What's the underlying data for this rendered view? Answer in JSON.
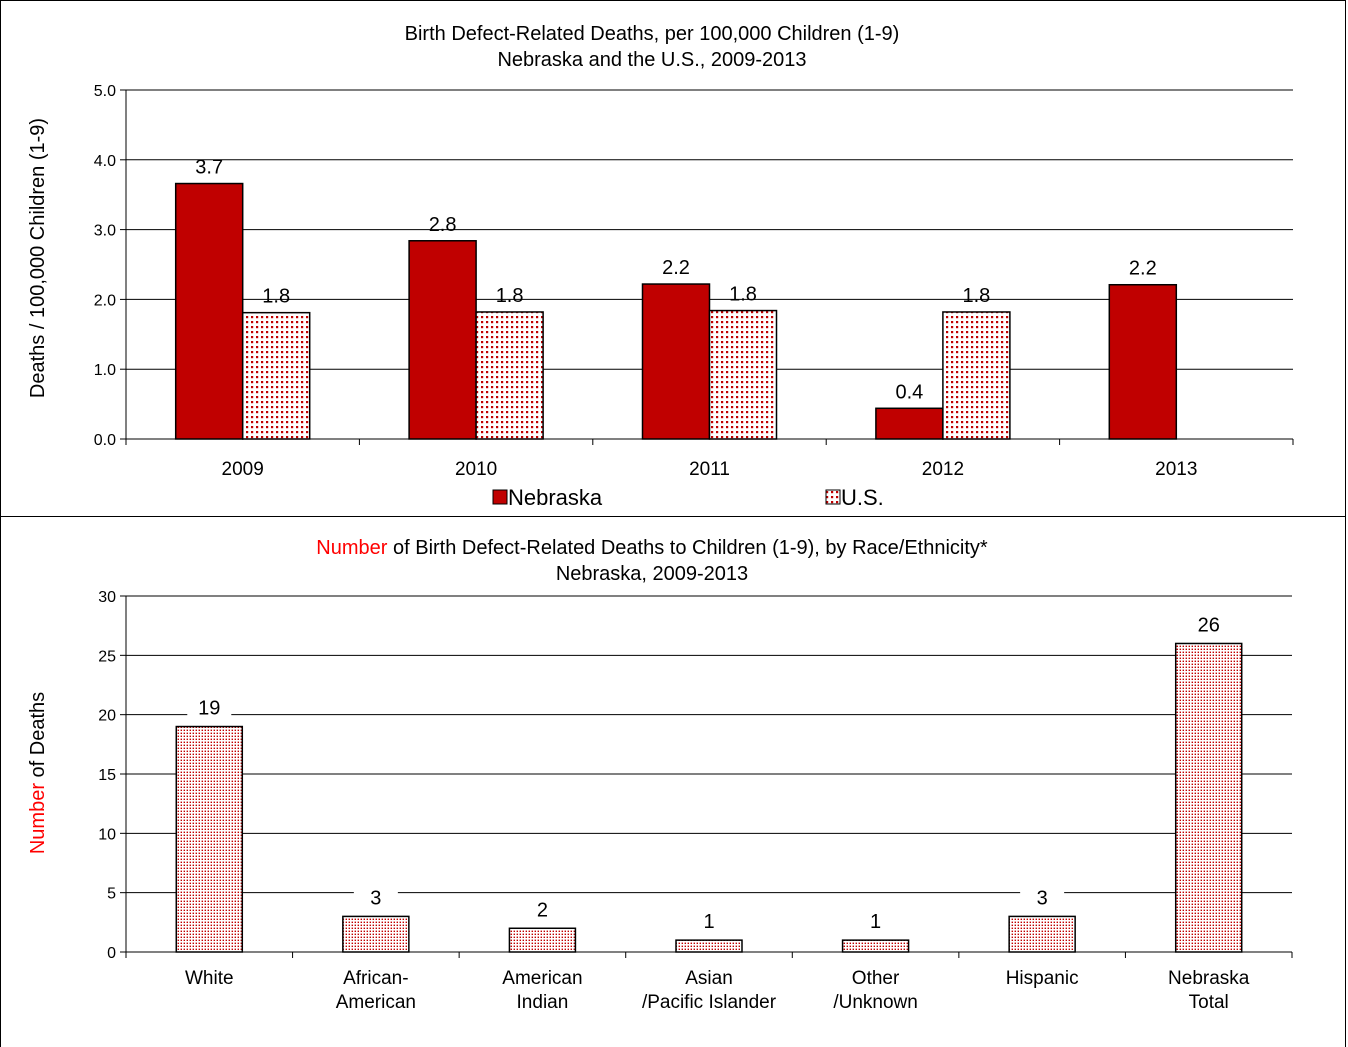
{
  "chart_data": [
    {
      "type": "bar",
      "title_line1": "Birth Defect-Related Deaths, per 100,000 Children (1-9)",
      "title_line2": "Nebraska and the U.S., 2009-2013",
      "ylabel": "Deaths / 100,000 Children (1-9)",
      "xlabel": "",
      "ylim": [
        0,
        5
      ],
      "yticks": [
        "0.0",
        "1.0",
        "2.0",
        "3.0",
        "4.0",
        "5.0"
      ],
      "grid": true,
      "legend_position": "bottom",
      "categories": [
        "2009",
        "2010",
        "2011",
        "2012",
        "2013"
      ],
      "series": [
        {
          "name": "Nebraska",
          "values": [
            3.66,
            2.84,
            2.22,
            0.44,
            2.21
          ],
          "labels": [
            "3.7",
            "2.8",
            "2.2",
            "0.4",
            "2.2"
          ],
          "color": "#c00000",
          "pattern": "solid"
        },
        {
          "name": "U.S.",
          "values": [
            1.81,
            1.82,
            1.84,
            1.82,
            null
          ],
          "labels": [
            "1.8",
            "1.8",
            "1.8",
            "1.8",
            ""
          ],
          "color": "#c00000",
          "pattern": "dotted"
        }
      ]
    },
    {
      "type": "bar",
      "title_prefix": "Number",
      "title_line1_rest": " of Birth Defect-Related Deaths to Children (1-9), by Race/Ethnicity*",
      "title_line2": "Nebraska, 2009-2013",
      "ylabel_prefix": "Number",
      "ylabel_rest": " of Deaths",
      "accent_color": "#ff0000",
      "xlabel": "",
      "ylim": [
        0,
        30
      ],
      "yticks": [
        "0",
        "5",
        "10",
        "15",
        "20",
        "25",
        "30"
      ],
      "grid": true,
      "categories": [
        [
          "White"
        ],
        [
          "African-",
          "American"
        ],
        [
          "American",
          "Indian"
        ],
        [
          "Asian",
          "/Pacific Islander"
        ],
        [
          "Other",
          "/Unknown"
        ],
        [
          "Hispanic"
        ],
        [
          "Nebraska",
          "Total"
        ]
      ],
      "values": [
        19,
        3,
        2,
        1,
        1,
        3,
        26
      ],
      "labels": [
        "19",
        "3",
        "2",
        "1",
        "1",
        "3",
        "26"
      ],
      "color": "#c00000"
    }
  ]
}
